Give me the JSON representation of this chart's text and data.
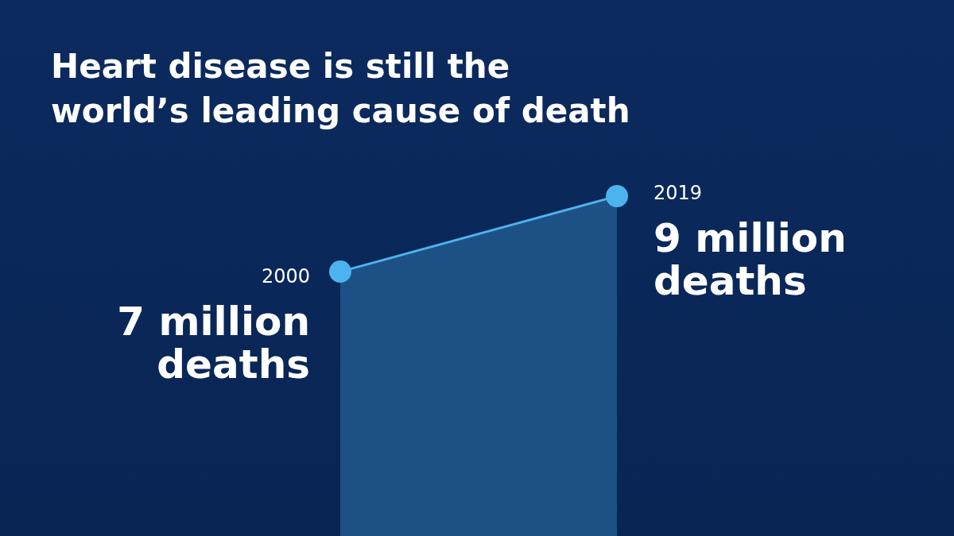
{
  "chart_data": {
    "type": "area",
    "title": "Heart disease is still the world’s leading cause of death",
    "categories": [
      "2000",
      "2019"
    ],
    "series": [
      {
        "color": "#4db3ee",
        "values": [
          7,
          9
        ],
        "value_labels": [
          "7 million deaths",
          "9 million deaths"
        ]
      }
    ],
    "marker": "circle"
  }
}
